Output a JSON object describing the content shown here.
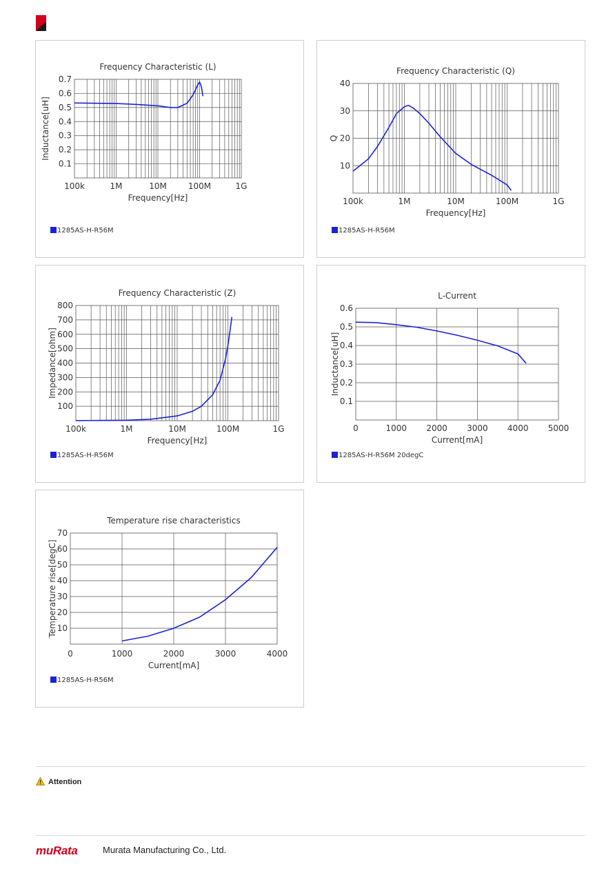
{
  "document": {
    "attention_label": "Attention",
    "brand": "muRata",
    "company": "Murata Manufacturing Co., Ltd.",
    "accent_color": "#d1001c",
    "series_color": "#1a22d8"
  },
  "chart_data": [
    {
      "id": "L",
      "type": "line",
      "title": "Frequency Characteristic (L)",
      "xlabel": "Frequency[Hz]",
      "ylabel": "Inductance[uH]",
      "xscale": "log",
      "xlim": [
        100000,
        1000000000
      ],
      "ylim": [
        0,
        0.7
      ],
      "xticks": [
        100000,
        1000000,
        10000000,
        100000000,
        1000000000
      ],
      "xticklabels": [
        "100k",
        "1M",
        "10M",
        "100M",
        "1G"
      ],
      "yticks": [
        0.1,
        0.2,
        0.3,
        0.4,
        0.5,
        0.6,
        0.7
      ],
      "yticklabels": [
        "0.1",
        "0.2",
        "0.3",
        "0.4",
        "0.5",
        "0.6",
        "0.7"
      ],
      "grid": true,
      "legend": "1285AS-H-R56M",
      "series": [
        {
          "name": "1285AS-H-R56M",
          "x": [
            100000,
            300000,
            1000000,
            3000000,
            10000000,
            20000000,
            30000000,
            50000000,
            70000000,
            90000000,
            100000000,
            110000000,
            120000000
          ],
          "y": [
            0.532,
            0.53,
            0.528,
            0.522,
            0.512,
            0.5,
            0.5,
            0.53,
            0.59,
            0.66,
            0.68,
            0.65,
            0.58
          ]
        }
      ]
    },
    {
      "id": "Q",
      "type": "line",
      "title": "Frequency Characteristic (Q)",
      "xlabel": "Frequency[Hz]",
      "ylabel": "Q",
      "xscale": "log",
      "xlim": [
        100000,
        1000000000
      ],
      "ylim": [
        0,
        40
      ],
      "xticks": [
        100000,
        1000000,
        10000000,
        100000000,
        1000000000
      ],
      "xticklabels": [
        "100k",
        "1M",
        "10M",
        "100M",
        "1G"
      ],
      "yticks": [
        10,
        20,
        30,
        40
      ],
      "yticklabels": [
        "10",
        "20",
        "30",
        "40"
      ],
      "grid": true,
      "legend": "1285AS-H-R56M",
      "series": [
        {
          "name": "1285AS-H-R56M",
          "x": [
            100000,
            200000,
            300000,
            500000,
            700000,
            1000000,
            1200000,
            1500000,
            2000000,
            3000000,
            5000000,
            10000000,
            20000000,
            50000000,
            100000000,
            120000000
          ],
          "y": [
            8,
            12.5,
            17,
            24,
            29,
            31.5,
            32,
            31,
            29,
            25.5,
            20.5,
            14.5,
            10.5,
            6.5,
            3,
            1
          ]
        }
      ]
    },
    {
      "id": "Z",
      "type": "line",
      "title": "Frequency Characteristic (Z)",
      "xlabel": "Frequency[Hz]",
      "ylabel": "Impedance[ohm]",
      "xscale": "log",
      "xlim": [
        100000,
        1000000000
      ],
      "ylim": [
        0,
        800
      ],
      "xticks": [
        100000,
        1000000,
        10000000,
        100000000,
        1000000000
      ],
      "xticklabels": [
        "100k",
        "1M",
        "10M",
        "100M",
        "1G"
      ],
      "yticks": [
        100,
        200,
        300,
        400,
        500,
        600,
        700,
        800
      ],
      "yticklabels": [
        "100",
        "200",
        "300",
        "400",
        "500",
        "600",
        "700",
        "800"
      ],
      "grid": true,
      "legend": "1285AS-H-R56M",
      "series": [
        {
          "name": "1285AS-H-R56M",
          "x": [
            100000,
            1000000,
            3000000,
            10000000,
            20000000,
            30000000,
            50000000,
            70000000,
            80000000,
            90000000,
            100000000,
            110000000,
            120000000
          ],
          "y": [
            0.4,
            3.5,
            10,
            33,
            65,
            100,
            180,
            280,
            360,
            430,
            520,
            620,
            720
          ]
        }
      ]
    },
    {
      "id": "LI",
      "type": "line",
      "title": "L-Current",
      "xlabel": "Current[mA]",
      "ylabel": "Inductance[uH]",
      "xlim": [
        0,
        5000
      ],
      "ylim": [
        0,
        0.6
      ],
      "xticks": [
        0,
        1000,
        2000,
        3000,
        4000,
        5000
      ],
      "xticklabels": [
        "0",
        "1000",
        "2000",
        "3000",
        "4000",
        "5000"
      ],
      "yticks": [
        0.1,
        0.2,
        0.3,
        0.4,
        0.5,
        0.6
      ],
      "yticklabels": [
        "0.1",
        "0.2",
        "0.3",
        "0.4",
        "0.5",
        "0.6"
      ],
      "grid": true,
      "legend": "1285AS-H-R56M 20degC",
      "series": [
        {
          "name": "1285AS-H-R56M 20degC",
          "x": [
            0,
            500,
            1000,
            1500,
            2000,
            2500,
            3000,
            3500,
            4000,
            4200
          ],
          "y": [
            0.525,
            0.523,
            0.512,
            0.498,
            0.478,
            0.455,
            0.428,
            0.398,
            0.355,
            0.305
          ]
        }
      ]
    },
    {
      "id": "T",
      "type": "line",
      "title": "Temperature rise characteristics",
      "xlabel": "Current[mA]",
      "ylabel": "Temperature rise[degC]",
      "xlim": [
        0,
        4000
      ],
      "ylim": [
        0,
        70
      ],
      "xticks": [
        0,
        1000,
        2000,
        3000,
        4000
      ],
      "xticklabels": [
        "0",
        "1000",
        "2000",
        "3000",
        "4000"
      ],
      "yticks": [
        10,
        20,
        30,
        40,
        50,
        60,
        70
      ],
      "yticklabels": [
        "10",
        "20",
        "30",
        "40",
        "50",
        "60",
        "70"
      ],
      "grid": true,
      "legend": "1285AS-H-R56M",
      "series": [
        {
          "name": "1285AS-H-R56M",
          "x": [
            1000,
            1500,
            2000,
            2500,
            3000,
            3500,
            4000
          ],
          "y": [
            2,
            5,
            10,
            17,
            28,
            42,
            61
          ]
        }
      ]
    }
  ]
}
